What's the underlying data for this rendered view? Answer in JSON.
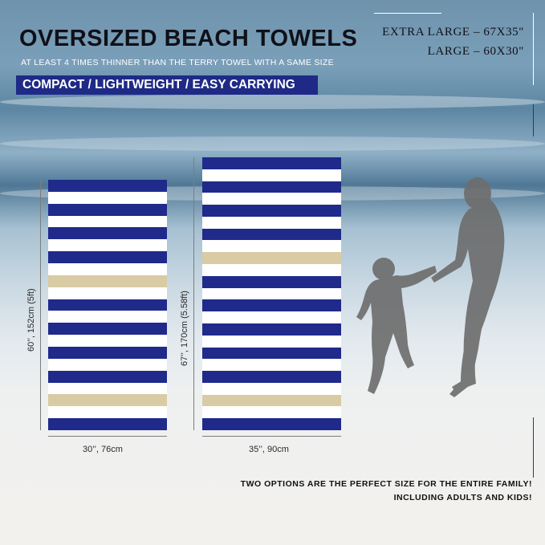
{
  "header": {
    "title": "OVERSIZED BEACH TOWELS",
    "subtitle": "AT LEAST 4 TIMES THINNER THAN THE TERRY TOWEL WITH A SAME SIZE",
    "banner": "COMPACT / LIGHTWEIGHT / EASY CARRYING"
  },
  "sizes": {
    "extra_large": "EXTRA  LARGE – 67X35\"",
    "large": "LARGE – 60X30\""
  },
  "towel_small": {
    "height_label": "60’’, 152cm (5ft)",
    "width_label": "30’’, 76cm"
  },
  "towel_large": {
    "height_label": "67’’, 170cm (5.58ft)",
    "width_label": "35’’, 90cm"
  },
  "footer": {
    "line1": "TWO OPTIONS ARE THE PERFECT SIZE FOR THE ENTIRE FAMILY!",
    "line2": "INCLUDING ADULTS AND KIDS!"
  },
  "colors": {
    "navy": "#1f2a8a",
    "white": "#ffffff",
    "tan": "#d9cba3",
    "banner": "#1e2a86"
  }
}
